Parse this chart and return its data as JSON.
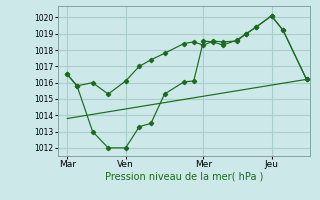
{
  "title": "",
  "xlabel": "Pression niveau de la mer( hPa )",
  "ylabel": "",
  "bg_color": "#cce8e8",
  "grid_color": "#aacccc",
  "line_color": "#1a6b1a",
  "xlim": [
    0,
    13
  ],
  "ylim": [
    1011.5,
    1020.7
  ],
  "yticks": [
    1012,
    1013,
    1014,
    1015,
    1016,
    1017,
    1018,
    1019,
    1020
  ],
  "xtick_positions": [
    0.5,
    3.5,
    7.5,
    11.0
  ],
  "xtick_labels": [
    "Mar",
    "Ven",
    "Mer",
    "Jeu"
  ],
  "vlines": [
    0.5,
    3.5,
    7.5,
    11.0
  ],
  "series1_x": [
    0.5,
    1.0,
    1.8,
    2.6,
    3.5,
    4.2,
    4.8,
    5.5,
    6.5,
    7.0,
    7.5,
    8.0,
    8.5,
    9.2,
    9.7,
    10.2,
    11.0,
    11.6,
    12.8
  ],
  "series1_y": [
    1016.5,
    1015.8,
    1013.0,
    1012.0,
    1012.0,
    1013.3,
    1013.5,
    1015.3,
    1016.05,
    1016.1,
    1018.55,
    1018.5,
    1018.3,
    1018.6,
    1019.0,
    1019.4,
    1020.1,
    1019.2,
    1016.2
  ],
  "series2_x": [
    0.5,
    1.0,
    1.8,
    2.6,
    3.5,
    4.2,
    4.8,
    5.5,
    6.5,
    7.0,
    7.5,
    8.0,
    8.5,
    9.2,
    9.7,
    10.2,
    11.0,
    11.6,
    12.8
  ],
  "series2_y": [
    1016.5,
    1015.8,
    1016.0,
    1015.3,
    1016.1,
    1017.0,
    1017.4,
    1017.8,
    1018.4,
    1018.5,
    1018.3,
    1018.55,
    1018.5,
    1018.55,
    1019.0,
    1019.4,
    1020.1,
    1019.2,
    1016.2
  ],
  "series3_x": [
    0.5,
    12.8
  ],
  "series3_y": [
    1013.8,
    1016.2
  ]
}
